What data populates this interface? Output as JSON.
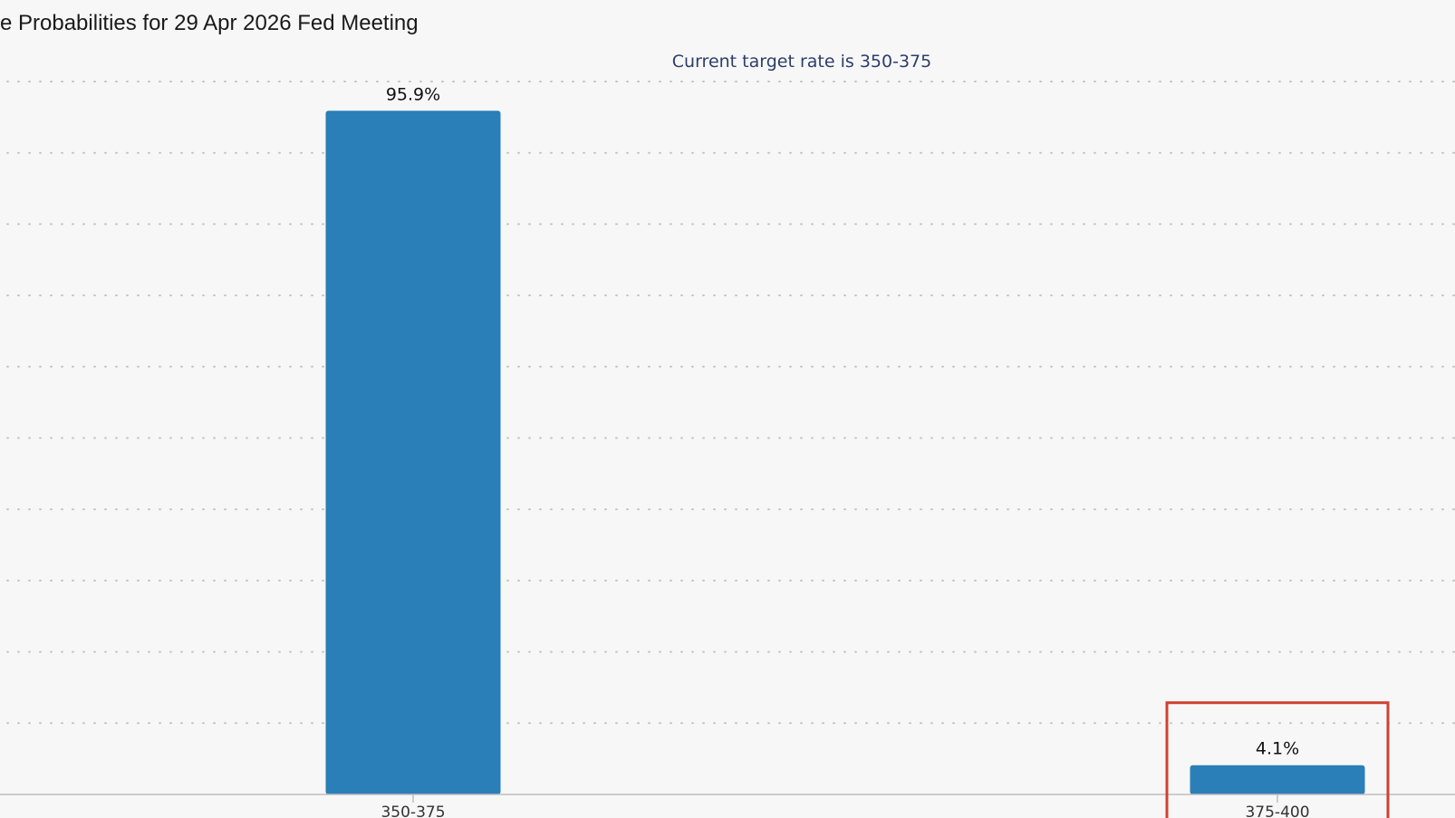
{
  "chart_data": {
    "type": "bar",
    "title": "e Probabilities for 29 Apr 2026 Fed Meeting",
    "subtitle": "Current target rate is 350-375",
    "categories": [
      "350-375",
      "375-400"
    ],
    "values": [
      95.9,
      4.1
    ],
    "data_labels": [
      "95.9%",
      "4.1%"
    ],
    "ylim": [
      0,
      100
    ],
    "grid": true,
    "highlighted_category": "375-400",
    "bar_color": "#2b7fb8",
    "highlight_color": "#d2402e"
  }
}
